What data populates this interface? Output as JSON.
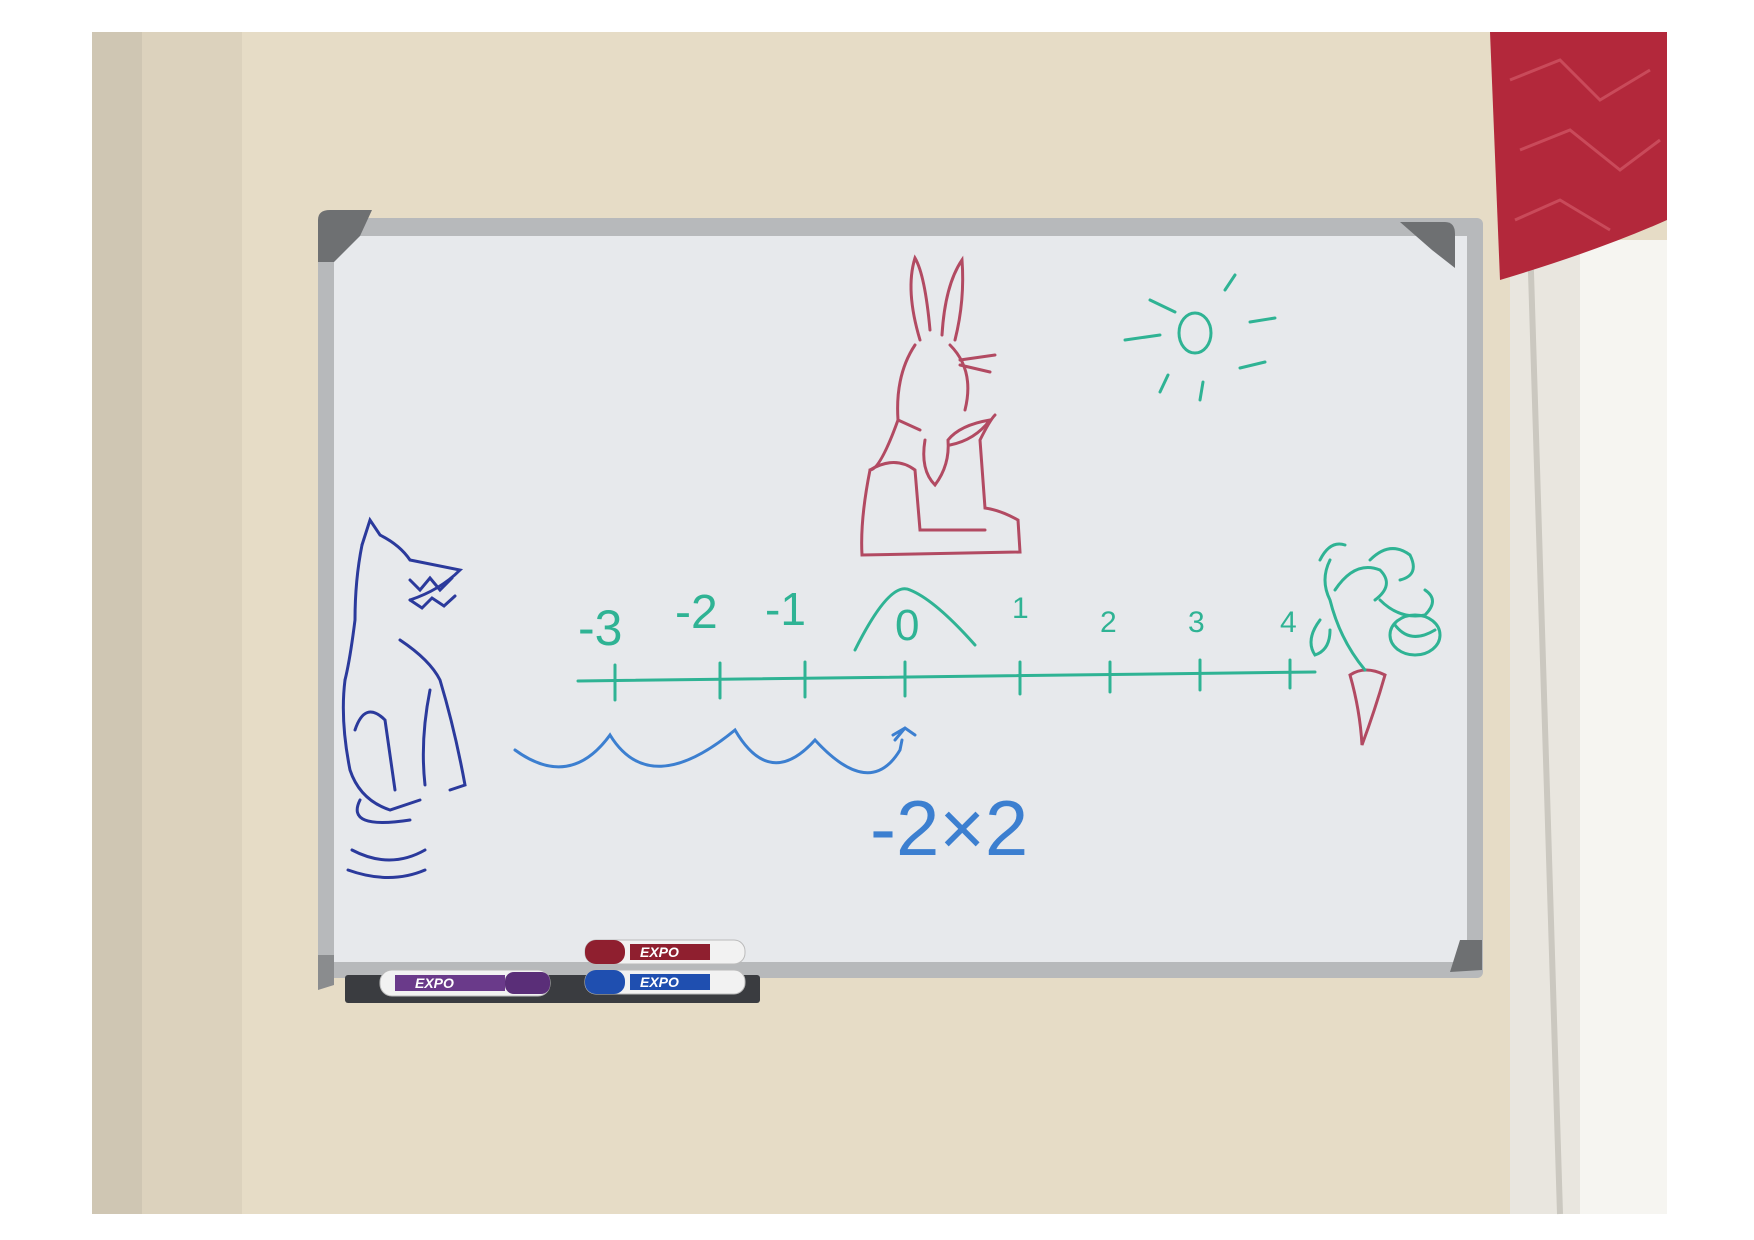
{
  "photo": {
    "colors": {
      "wall": "#e6dcc6",
      "wall_shadow": "#c9bfab",
      "board": "#e7e9ec",
      "frame": "#b7b9bb",
      "corner": "#6e7072",
      "curtain": "#b3283b",
      "tray": "#3a3c40",
      "green_marker": "#2fb394",
      "red_marker": "#b24a62",
      "blue_marker": "#3c7fd0",
      "navy_marker": "#2b3a9c"
    }
  },
  "whiteboard": {
    "number_line": {
      "labels": [
        "-3",
        "-2",
        "-1",
        "0",
        "1",
        "2",
        "3",
        "4"
      ]
    },
    "equation": "-2×2",
    "drawings": [
      "wolf",
      "rabbit",
      "sun",
      "carrot",
      "jump-arcs"
    ]
  },
  "markers": [
    {
      "brand": "EXPO",
      "color": "#6a3a8a"
    },
    {
      "brand": "EXPO",
      "color": "#8f1f2f"
    },
    {
      "brand": "EXPO",
      "color": "#1f4fb0"
    }
  ]
}
